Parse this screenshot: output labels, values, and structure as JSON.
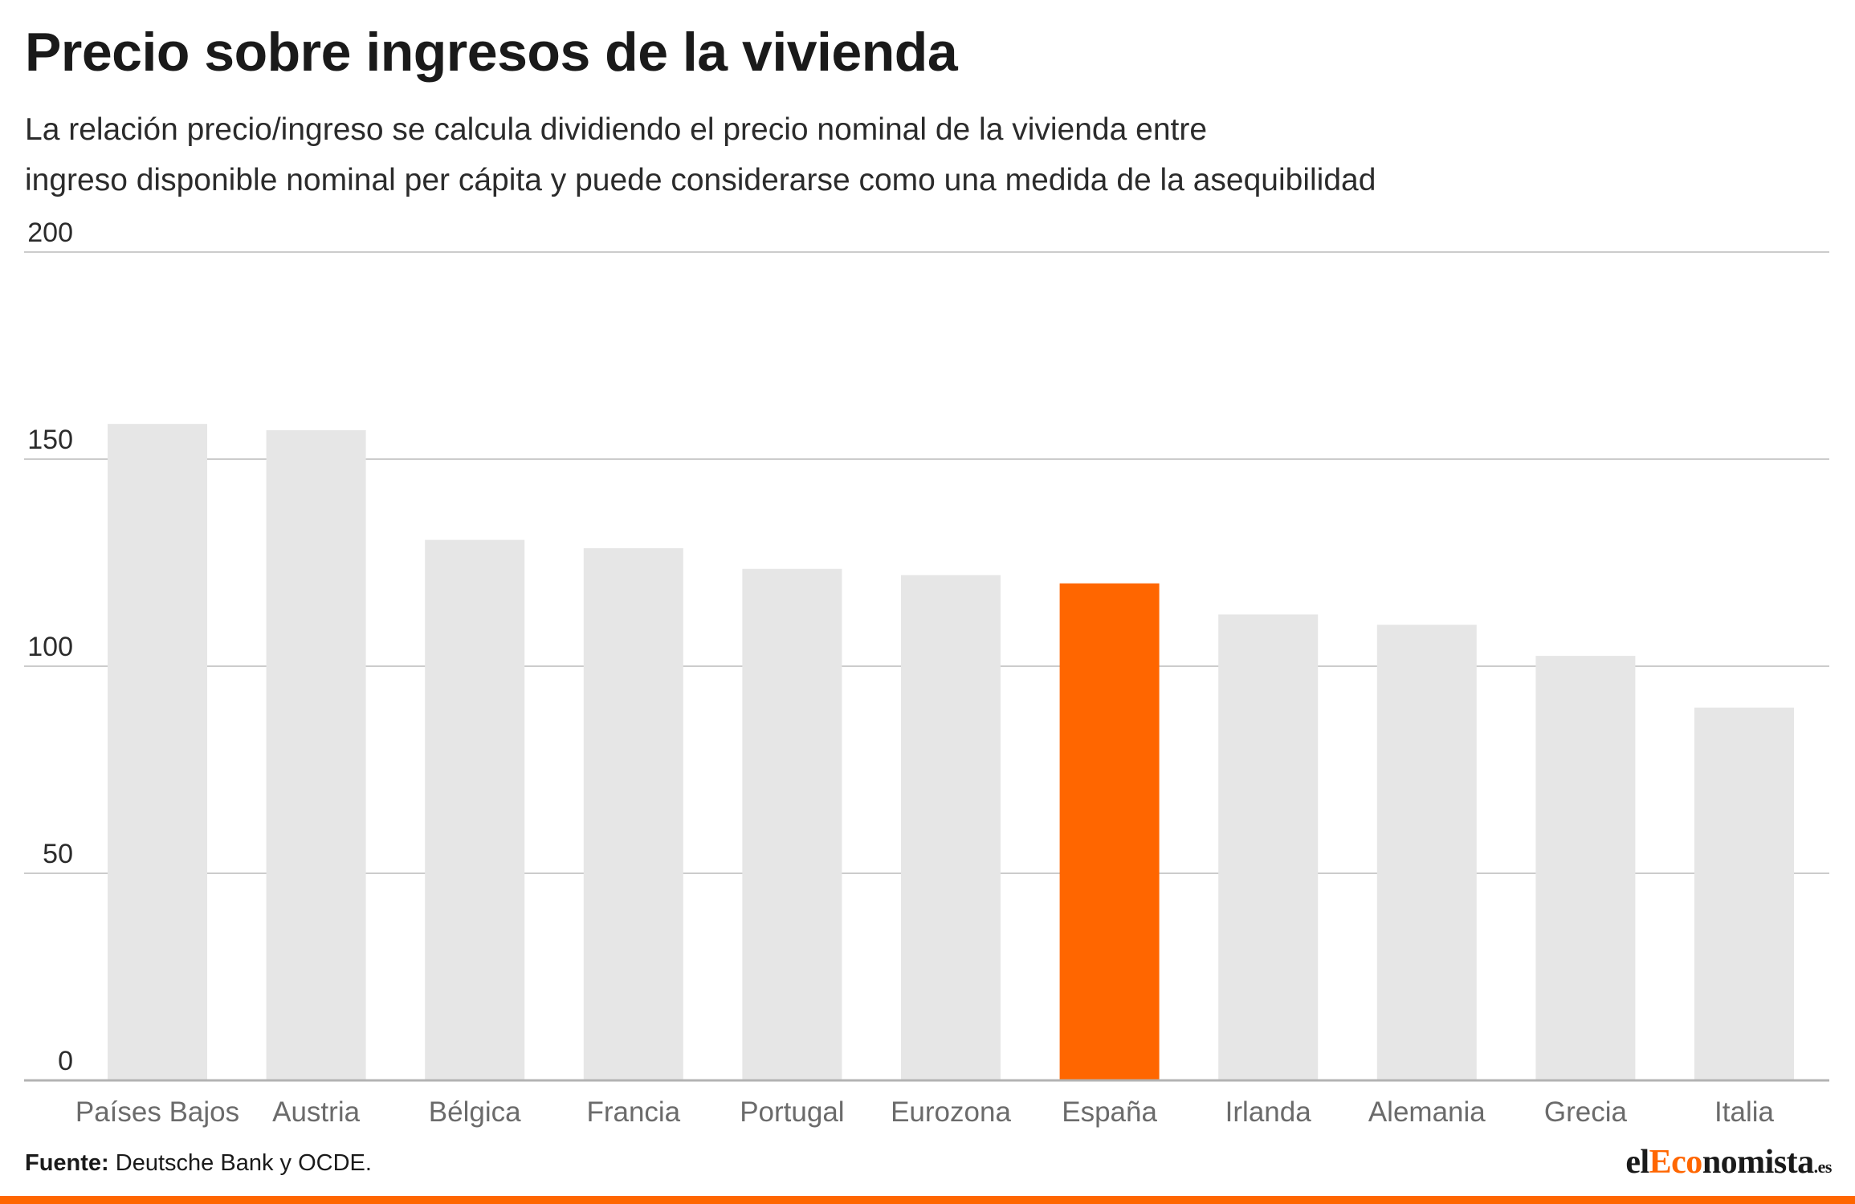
{
  "header": {
    "title": "Precio sobre ingresos de la vivienda",
    "subtitle_line1": "La relación precio/ingreso se calcula dividiendo el precio nominal de la vivienda entre",
    "subtitle_line2": "ingreso disponible nominal per cápita y puede considerarse como una medida de la asequibilidad"
  },
  "chart_data": {
    "type": "bar",
    "categories": [
      "Países Bajos",
      "Austria",
      "Bélgica",
      "Francia",
      "Portugal",
      "Eurozona",
      "España",
      "Irlanda",
      "Alemania",
      "Grecia",
      "Italia"
    ],
    "values": [
      158.5,
      157,
      130.5,
      128.5,
      123.5,
      122,
      120,
      112.5,
      110,
      102.5,
      90
    ],
    "highlight_category": "España",
    "yticks": [
      0,
      50,
      100,
      150,
      200
    ],
    "ylim": [
      0,
      200
    ],
    "grid": true,
    "colors": {
      "bar": "#e6e6e6",
      "highlight": "#ff6600",
      "grid": "#cccccc",
      "baseline": "#b3b3b3"
    }
  },
  "footer": {
    "source_label": "Fuente:",
    "source_text": "Deutsche Bank y OCDE.",
    "logo_prefix": "el",
    "logo_accent": "Eco",
    "logo_suffix": "nomista",
    "logo_tld": ".es"
  }
}
